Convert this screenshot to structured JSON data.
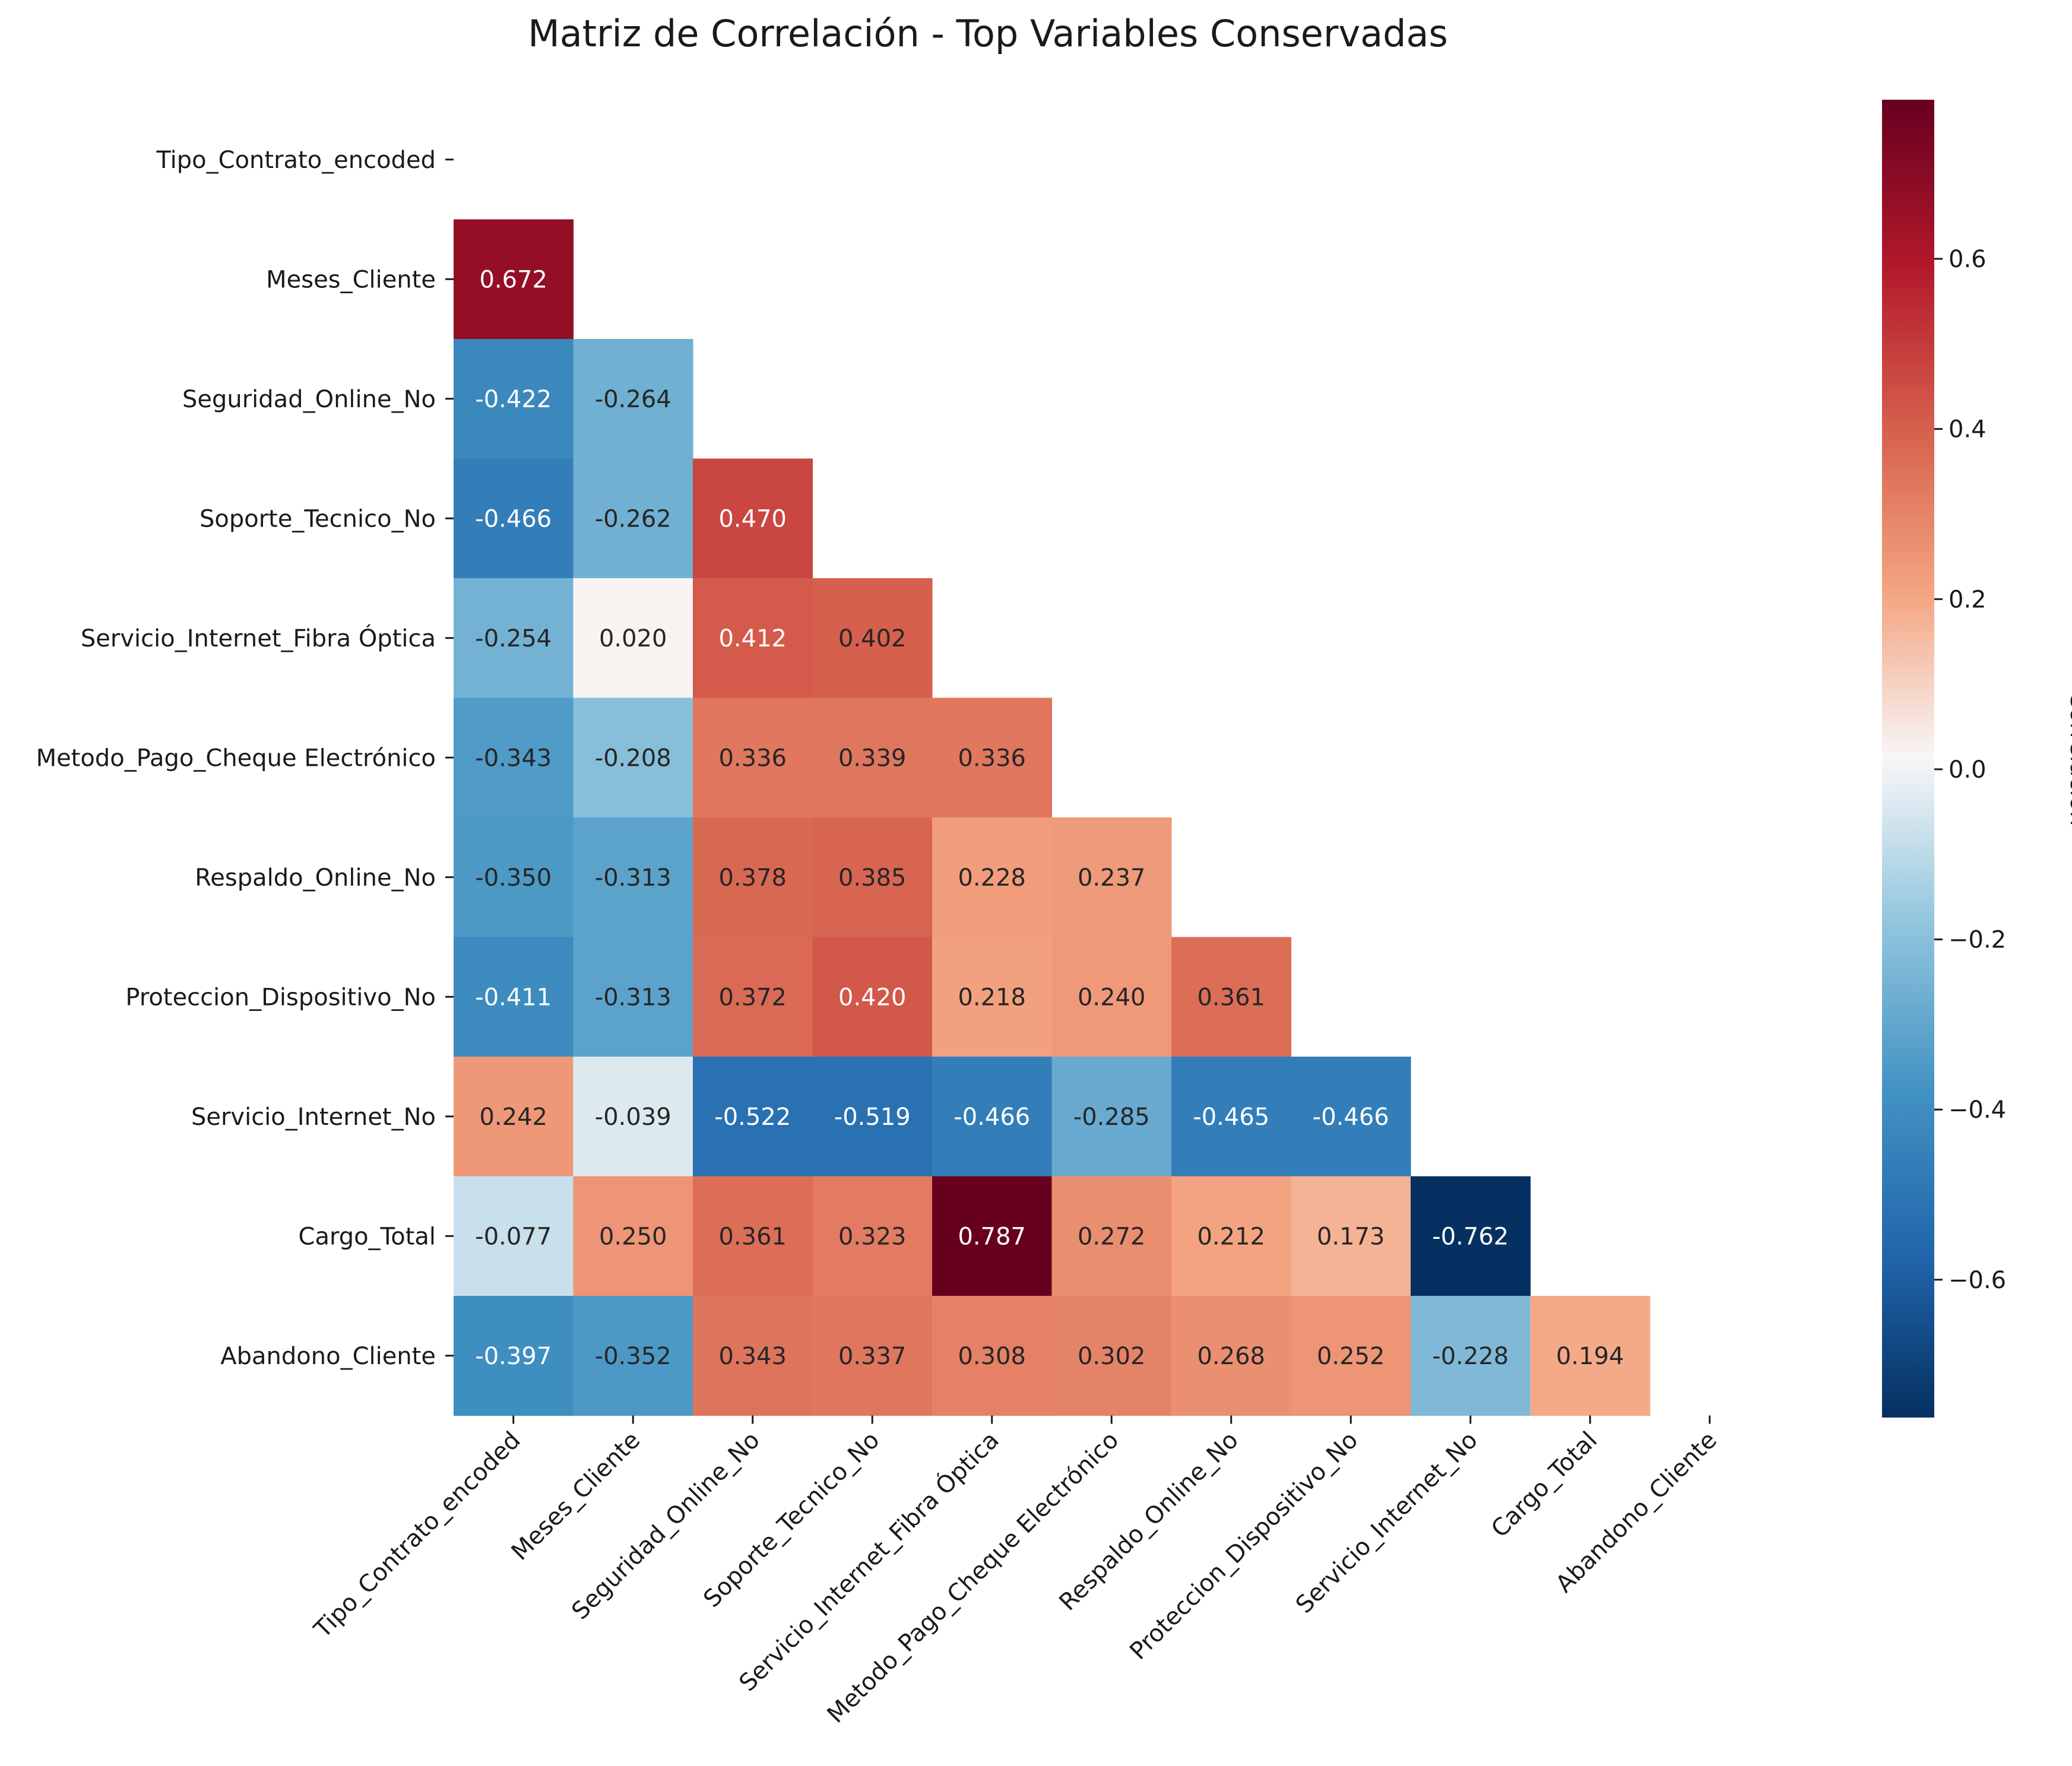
{
  "chart_data": {
    "type": "heatmap",
    "title": "Matriz de Correlación - Top Variables Conservadas",
    "variables": [
      "Tipo_Contrato_encoded",
      "Meses_Cliente",
      "Seguridad_Online_No",
      "Soporte_Tecnico_No",
      "Servicio_Internet_Fibra Óptica",
      "Metodo_Pago_Cheque Electrónico",
      "Respaldo_Online_No",
      "Proteccion_Dispositivo_No",
      "Servicio_Internet_No",
      "Cargo_Total",
      "Abandono_Cliente"
    ],
    "mask": "upper-triangle-including-diagonal",
    "lower_triangle": [
      [],
      [
        0.672
      ],
      [
        -0.422,
        -0.264
      ],
      [
        -0.466,
        -0.262,
        0.47
      ],
      [
        -0.254,
        0.02,
        0.412,
        0.402
      ],
      [
        -0.343,
        -0.208,
        0.336,
        0.339,
        0.336
      ],
      [
        -0.35,
        -0.313,
        0.378,
        0.385,
        0.228,
        0.237
      ],
      [
        -0.411,
        -0.313,
        0.372,
        0.42,
        0.218,
        0.24,
        0.361
      ],
      [
        0.242,
        -0.039,
        -0.522,
        -0.519,
        -0.466,
        -0.285,
        -0.465,
        -0.466
      ],
      [
        -0.077,
        0.25,
        0.361,
        0.323,
        0.787,
        0.272,
        0.212,
        0.173,
        -0.762
      ],
      [
        -0.397,
        -0.352,
        0.343,
        0.337,
        0.308,
        0.302,
        0.268,
        0.252,
        -0.228,
        0.194
      ]
    ],
    "cell_labels": [
      [],
      [
        "0.672"
      ],
      [
        "-0.422",
        "-0.264"
      ],
      [
        "-0.466",
        "-0.262",
        "0.470"
      ],
      [
        "-0.254",
        "0.020",
        "0.412",
        "0.402"
      ],
      [
        "-0.343",
        "-0.208",
        "0.336",
        "0.339",
        "0.336"
      ],
      [
        "-0.350",
        "-0.313",
        "0.378",
        "0.385",
        "0.228",
        "0.237"
      ],
      [
        "-0.411",
        "-0.313",
        "0.372",
        "0.420",
        "0.218",
        "0.240",
        "0.361"
      ],
      [
        "0.242",
        "-0.039",
        "-0.522",
        "-0.519",
        "-0.466",
        "-0.285",
        "-0.465",
        "-0.466"
      ],
      [
        "-0.077",
        "0.250",
        "0.361",
        "0.323",
        "0.787",
        "0.272",
        "0.212",
        "0.173",
        "-0.762"
      ],
      [
        "-0.397",
        "-0.352",
        "0.343",
        "0.337",
        "0.308",
        "0.302",
        "0.268",
        "0.252",
        "-0.228",
        "0.194"
      ]
    ],
    "colormap": "RdBu_r",
    "color_range": [
      -0.762,
      0.787
    ],
    "colorbar": {
      "label": "Correlación",
      "ticks": [
        -0.6,
        -0.4,
        -0.2,
        0.0,
        0.2,
        0.4,
        0.6
      ],
      "tick_labels": [
        "−0.6",
        "−0.4",
        "−0.2",
        "0.0",
        "0.2",
        "0.4",
        "0.6"
      ]
    },
    "grid": false
  }
}
